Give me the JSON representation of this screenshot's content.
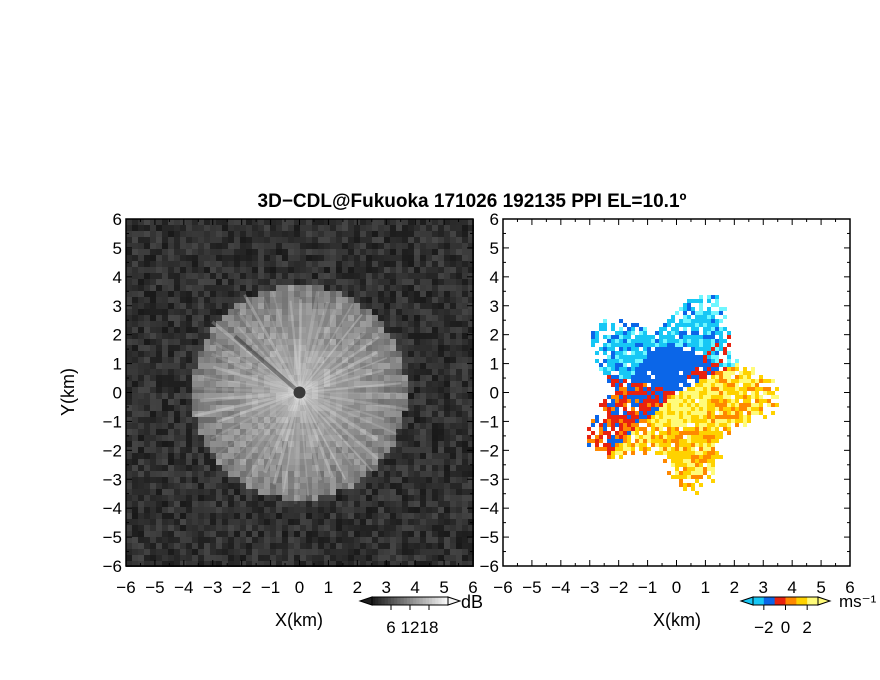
{
  "title": "3D−CDL@Fukuoka 171026 192135 PPI EL=10.1º",
  "chart_data": [
    {
      "type": "heatmap",
      "panel": "left",
      "quantity": "radar reflectivity",
      "xlabel": "X(km)",
      "ylabel": "Y(km)",
      "xlim": [
        -6,
        6
      ],
      "ylim": [
        -6,
        6
      ],
      "xticks": [
        "−6",
        "−5",
        "−4",
        "−3",
        "−2",
        "−1",
        "0",
        "1",
        "2",
        "3",
        "4",
        "5",
        "6"
      ],
      "yticks": [
        "6",
        "5",
        "4",
        "3",
        "2",
        "1",
        "0",
        "−1",
        "−2",
        "−3",
        "−4",
        "−5",
        "−6"
      ],
      "echo_radius_km": 3.7,
      "colorscale": "gray",
      "colorbar": {
        "unit": "dB",
        "ticks": [
          "6",
          "12",
          "18"
        ],
        "range": [
          0,
          24
        ]
      }
    },
    {
      "type": "heatmap",
      "panel": "right",
      "quantity": "Doppler velocity",
      "xlabel": "X(km)",
      "ylabel": "",
      "xlim": [
        -6,
        6
      ],
      "ylim": [
        -6,
        6
      ],
      "xticks": [
        "−6",
        "−5",
        "−4",
        "−3",
        "−2",
        "−1",
        "0",
        "1",
        "2",
        "3",
        "4",
        "5",
        "6"
      ],
      "yticks": [
        "6",
        "5",
        "4",
        "3",
        "2",
        "1",
        "0",
        "−1",
        "−2",
        "−3",
        "−4",
        "−5",
        "−6"
      ],
      "echo_radius_km": 3.6,
      "colorscale": [
        "#6ff7ff",
        "#17c7f5",
        "#0b66e8",
        "#e8220f",
        "#ff8800",
        "#ffd200",
        "#fffb7a"
      ],
      "colorbar": {
        "unit": "ms⁻¹",
        "ticks": [
          "−2",
          "0",
          "2"
        ],
        "range": [
          -3,
          3
        ]
      }
    }
  ]
}
